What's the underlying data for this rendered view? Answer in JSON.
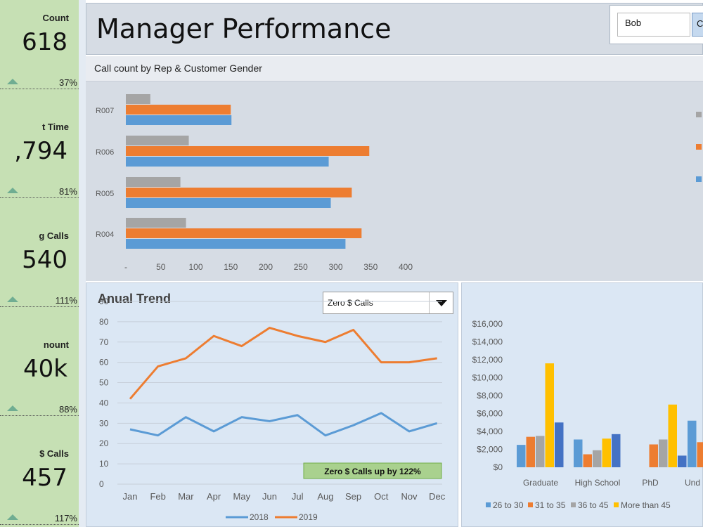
{
  "kpis": [
    {
      "title": "Count",
      "value": "618",
      "pct": "37%"
    },
    {
      "title": "t Time",
      "value": ",794",
      "pct": "81%"
    },
    {
      "title": "g Calls",
      "value": "540",
      "pct": "111%"
    },
    {
      "title": "nount",
      "value": "40k",
      "pct": "88%"
    },
    {
      "title": "$ Calls",
      "value": "457",
      "pct": "117%"
    }
  ],
  "header": {
    "title": "Manager Performance",
    "selector_value": "Bob",
    "selector_button": "C"
  },
  "bar_chart": {
    "title": "Call count by Rep & Customer Gender"
  },
  "line_panel": {
    "title": "Anual Trend",
    "metric_selected": "Zero $ Calls",
    "annotation": "Zero $ Calls up by 122%"
  },
  "colors": {
    "blue": "#5b9bd5",
    "orange": "#ed7d31",
    "gray": "#a5a5a5",
    "yellow": "#ffc000",
    "darkblue": "#4472c4",
    "kpi_bg": "#c6e0b4",
    "annotation_bg": "#a9d18e"
  },
  "chart_data": [
    {
      "type": "bar",
      "orientation": "horizontal",
      "title": "Call count by Rep & Customer Gender",
      "categories": [
        "R007",
        "R006",
        "R005",
        "R004"
      ],
      "series": [
        {
          "values": [
            35,
            90,
            78,
            86
          ]
        },
        {
          "values": [
            150,
            348,
            323,
            337
          ]
        },
        {
          "values": [
            151,
            290,
            293,
            314
          ]
        }
      ],
      "xticks": [
        "-",
        "50",
        "100",
        "150",
        "200",
        "250",
        "300",
        "350",
        "400"
      ],
      "xlim": [
        0,
        400
      ]
    },
    {
      "type": "line",
      "title": "Anual Trend",
      "x": [
        "Jan",
        "Feb",
        "Mar",
        "Apr",
        "May",
        "Jun",
        "Jul",
        "Aug",
        "Sep",
        "Oct",
        "Nov",
        "Dec"
      ],
      "yticks": [
        0,
        10,
        20,
        30,
        40,
        50,
        60,
        70,
        80,
        90
      ],
      "ylim": [
        0,
        90
      ],
      "series": [
        {
          "name": "2018",
          "values": [
            27,
            24,
            33,
            26,
            33,
            31,
            34,
            24,
            29,
            35,
            26,
            30
          ]
        },
        {
          "name": "2019",
          "values": [
            42,
            58,
            62,
            73,
            68,
            77,
            73,
            70,
            76,
            60,
            60,
            62
          ]
        }
      ],
      "annotation": "Zero $ Calls up by 122%"
    },
    {
      "type": "bar",
      "categories": [
        "Graduate",
        "High School",
        "PhD",
        "Und"
      ],
      "yticks": [
        "$0",
        "$2,000",
        "$4,000",
        "$6,000",
        "$8,000",
        "$10,000",
        "$12,000",
        "$14,000",
        "$16,000"
      ],
      "ylim": [
        0,
        16000
      ],
      "series": [
        {
          "name": "26 to 30",
          "values": [
            2500,
            3100,
            null,
            5200
          ]
        },
        {
          "name": "31 to 35",
          "values": [
            3400,
            1450,
            2550,
            2800
          ]
        },
        {
          "name": "36 to 45",
          "values": [
            3500,
            1900,
            3100,
            null
          ]
        },
        {
          "name": "More than 45",
          "values": [
            11600,
            3200,
            7000,
            null
          ]
        },
        {
          "name": "",
          "values": [
            5000,
            3700,
            1300,
            null
          ]
        }
      ],
      "legend": [
        "26 to 30",
        "31 to 35",
        "36 to 45",
        "More than 45"
      ]
    }
  ]
}
